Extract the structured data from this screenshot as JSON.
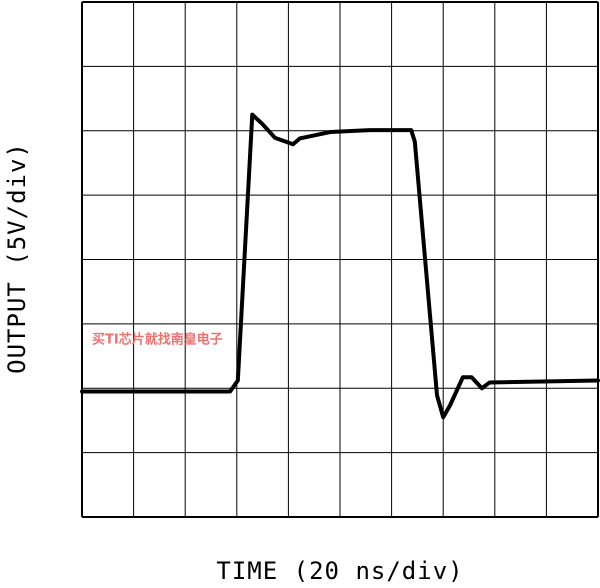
{
  "chart_data": {
    "type": "line",
    "xlabel": "TIME (20 ns/div)",
    "ylabel": "OUTPUT (5V/div)",
    "annotation": "买TI芯片就找南皇电子",
    "xlim": [
      0,
      10
    ],
    "ylim": [
      0,
      8
    ],
    "grid": true,
    "x": [
      0,
      2.87,
      3.02,
      3.3,
      3.49,
      3.74,
      4.09,
      4.22,
      4.81,
      5.58,
      6.38,
      6.45,
      6.88,
      7.0,
      7.13,
      7.38,
      7.55,
      7.75,
      7.9,
      10
    ],
    "series": [
      {
        "color": "#000000",
        "values": [
          1.95,
          1.95,
          2.12,
          6.25,
          6.11,
          5.89,
          5.79,
          5.88,
          5.98,
          6.01,
          6.01,
          5.83,
          1.89,
          1.55,
          1.73,
          2.17,
          2.17,
          2.0,
          2.09,
          2.12
        ]
      }
    ]
  }
}
